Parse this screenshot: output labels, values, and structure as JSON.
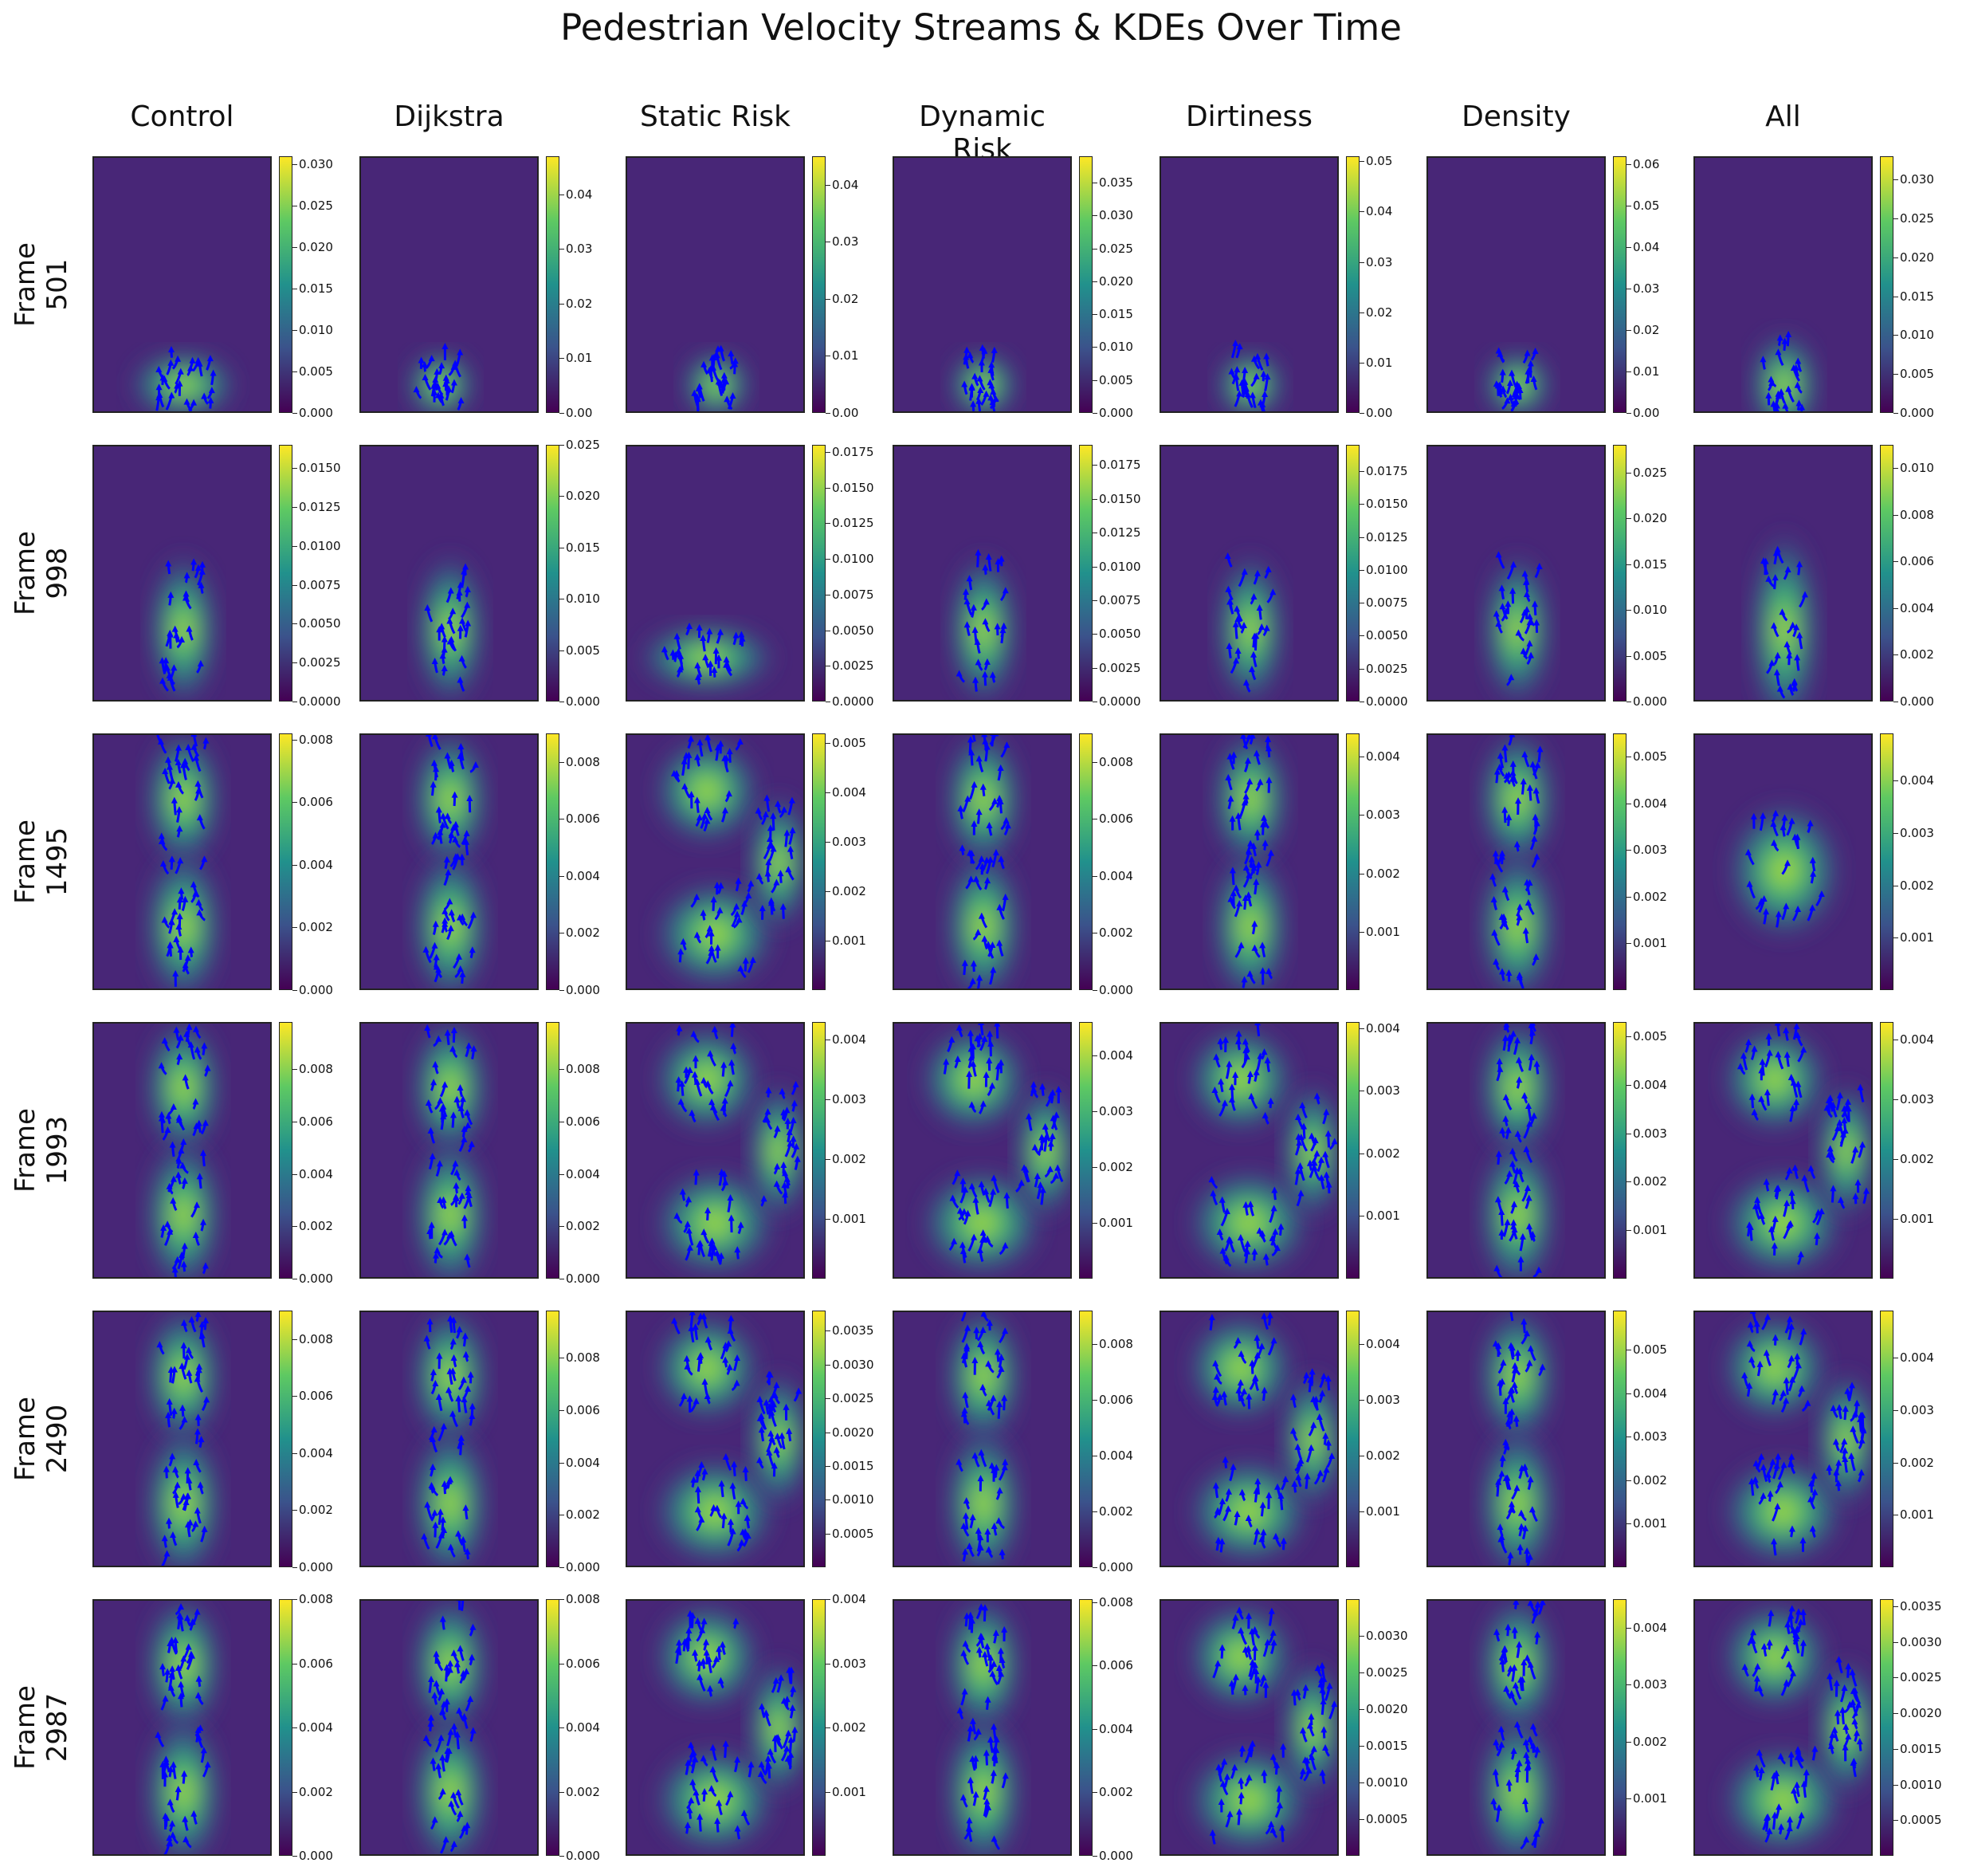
{
  "chart_data": {
    "type": "heatmap",
    "title": "Pedestrian Velocity Streams & KDEs Over Time",
    "columns": [
      "Control",
      "Dijkstra",
      "Static Risk",
      "Dynamic Risk",
      "Dirtiness",
      "Density",
      "All"
    ],
    "rows": [
      {
        "frame": "Frame\n501",
        "panels": [
          {
            "max": 0.031,
            "ticks": [
              "0.000",
              "0.005",
              "0.010",
              "0.015",
              "0.020",
              "0.025",
              "0.030"
            ],
            "pattern": "blob-bottom-wide"
          },
          {
            "max": 0.047,
            "ticks": [
              "0.00",
              "0.01",
              "0.02",
              "0.03",
              "0.04"
            ],
            "pattern": "blob-bottom-left"
          },
          {
            "max": 0.045,
            "ticks": [
              "0.00",
              "0.01",
              "0.02",
              "0.03",
              "0.04"
            ],
            "pattern": "blob-bottom"
          },
          {
            "max": 0.039,
            "ticks": [
              "0.000",
              "0.005",
              "0.010",
              "0.015",
              "0.020",
              "0.025",
              "0.030",
              "0.035"
            ],
            "pattern": "blob-bottom"
          },
          {
            "max": 0.051,
            "ticks": [
              "0.00",
              "0.01",
              "0.02",
              "0.03",
              "0.04",
              "0.05"
            ],
            "pattern": "blob-bottom"
          },
          {
            "max": 0.062,
            "ticks": [
              "0.00",
              "0.01",
              "0.02",
              "0.03",
              "0.04",
              "0.05",
              "0.06"
            ],
            "pattern": "blob-bottom-small"
          },
          {
            "max": 0.033,
            "ticks": [
              "0.000",
              "0.005",
              "0.010",
              "0.015",
              "0.020",
              "0.025",
              "0.030"
            ],
            "pattern": "blob-bottom-tall"
          }
        ]
      },
      {
        "frame": "Frame\n998",
        "panels": [
          {
            "max": 0.0165,
            "ticks": [
              "0.0000",
              "0.0025",
              "0.0050",
              "0.0075",
              "0.0100",
              "0.0125",
              "0.0150"
            ],
            "pattern": "column-lower"
          },
          {
            "max": 0.025,
            "ticks": [
              "0.000",
              "0.005",
              "0.010",
              "0.015",
              "0.020",
              "0.025"
            ],
            "pattern": "column-lower-short"
          },
          {
            "max": 0.018,
            "ticks": [
              "0.0000",
              "0.0025",
              "0.0050",
              "0.0075",
              "0.0100",
              "0.0125",
              "0.0150",
              "0.0175"
            ],
            "pattern": "horizontal-bottom"
          },
          {
            "max": 0.019,
            "ticks": [
              "0.0000",
              "0.0025",
              "0.0050",
              "0.0075",
              "0.0100",
              "0.0125",
              "0.0150",
              "0.0175"
            ],
            "pattern": "column-lower"
          },
          {
            "max": 0.0195,
            "ticks": [
              "0.0000",
              "0.0025",
              "0.0050",
              "0.0075",
              "0.0100",
              "0.0125",
              "0.0150",
              "0.0175"
            ],
            "pattern": "column-lower"
          },
          {
            "max": 0.028,
            "ticks": [
              "0.000",
              "0.005",
              "0.010",
              "0.015",
              "0.020",
              "0.025"
            ],
            "pattern": "column-lower"
          },
          {
            "max": 0.011,
            "ticks": [
              "0.000",
              "0.002",
              "0.004",
              "0.006",
              "0.008",
              "0.010"
            ],
            "pattern": "column-lower-tall"
          }
        ]
      },
      {
        "frame": "Frame\n1495",
        "panels": [
          {
            "max": 0.0082,
            "ticks": [
              "0.000",
              "0.002",
              "0.004",
              "0.006",
              "0.008"
            ],
            "pattern": "column-full"
          },
          {
            "max": 0.009,
            "ticks": [
              "0.000",
              "0.002",
              "0.004",
              "0.006",
              "0.008"
            ],
            "pattern": "column-full"
          },
          {
            "max": 0.0052,
            "ticks": [
              "0.001",
              "0.002",
              "0.003",
              "0.004",
              "0.005"
            ],
            "pattern": "loop"
          },
          {
            "max": 0.009,
            "ticks": [
              "0.000",
              "0.002",
              "0.004",
              "0.006",
              "0.008"
            ],
            "pattern": "column-full"
          },
          {
            "max": 0.0044,
            "ticks": [
              "0.001",
              "0.002",
              "0.003",
              "0.004"
            ],
            "pattern": "column-left-arm"
          },
          {
            "max": 0.0055,
            "ticks": [
              "0.001",
              "0.002",
              "0.003",
              "0.004",
              "0.005"
            ],
            "pattern": "column-scatter"
          },
          {
            "max": 0.0049,
            "ticks": [
              "0.001",
              "0.002",
              "0.003",
              "0.004"
            ],
            "pattern": "scatter-center"
          }
        ]
      },
      {
        "frame": "Frame\n1993",
        "panels": [
          {
            "max": 0.0098,
            "ticks": [
              "0.000",
              "0.002",
              "0.004",
              "0.006",
              "0.008"
            ],
            "pattern": "column-full"
          },
          {
            "max": 0.0098,
            "ticks": [
              "0.000",
              "0.002",
              "0.004",
              "0.006",
              "0.008"
            ],
            "pattern": "column-full"
          },
          {
            "max": 0.0043,
            "ticks": [
              "0.001",
              "0.002",
              "0.003",
              "0.004"
            ],
            "pattern": "loop"
          },
          {
            "max": 0.0046,
            "ticks": [
              "0.001",
              "0.002",
              "0.003",
              "0.004"
            ],
            "pattern": "loop"
          },
          {
            "max": 0.0041,
            "ticks": [
              "0.001",
              "0.002",
              "0.003",
              "0.004"
            ],
            "pattern": "loop"
          },
          {
            "max": 0.0053,
            "ticks": [
              "0.001",
              "0.002",
              "0.003",
              "0.004",
              "0.005"
            ],
            "pattern": "column-full"
          },
          {
            "max": 0.0043,
            "ticks": [
              "0.001",
              "0.002",
              "0.003",
              "0.004"
            ],
            "pattern": "loop"
          }
        ]
      },
      {
        "frame": "Frame\n2490",
        "panels": [
          {
            "max": 0.009,
            "ticks": [
              "0.000",
              "0.002",
              "0.004",
              "0.006",
              "0.008"
            ],
            "pattern": "column-full"
          },
          {
            "max": 0.0098,
            "ticks": [
              "0.000",
              "0.002",
              "0.004",
              "0.006",
              "0.008"
            ],
            "pattern": "column-full"
          },
          {
            "max": 0.0038,
            "ticks": [
              "0.0005",
              "0.0010",
              "0.0015",
              "0.0020",
              "0.0025",
              "0.0030",
              "0.0035"
            ],
            "pattern": "loop"
          },
          {
            "max": 0.0092,
            "ticks": [
              "0.000",
              "0.002",
              "0.004",
              "0.006",
              "0.008"
            ],
            "pattern": "column-full"
          },
          {
            "max": 0.0046,
            "ticks": [
              "0.001",
              "0.002",
              "0.003",
              "0.004"
            ],
            "pattern": "loop"
          },
          {
            "max": 0.0059,
            "ticks": [
              "0.001",
              "0.002",
              "0.003",
              "0.004",
              "0.005"
            ],
            "pattern": "column-full"
          },
          {
            "max": 0.0049,
            "ticks": [
              "0.001",
              "0.002",
              "0.003",
              "0.004"
            ],
            "pattern": "loop"
          }
        ]
      },
      {
        "frame": "Frame\n2987",
        "panels": [
          {
            "max": 0.008,
            "ticks": [
              "0.000",
              "0.002",
              "0.004",
              "0.006",
              "0.008"
            ],
            "pattern": "column-full"
          },
          {
            "max": 0.008,
            "ticks": [
              "0.000",
              "0.002",
              "0.004",
              "0.006",
              "0.008"
            ],
            "pattern": "column-full"
          },
          {
            "max": 0.004,
            "ticks": [
              "0.001",
              "0.002",
              "0.003",
              "0.004"
            ],
            "pattern": "loop"
          },
          {
            "max": 0.0081,
            "ticks": [
              "0.000",
              "0.002",
              "0.004",
              "0.006",
              "0.008"
            ],
            "pattern": "column-full"
          },
          {
            "max": 0.0035,
            "ticks": [
              "0.0005",
              "0.0010",
              "0.0015",
              "0.0020",
              "0.0025",
              "0.0030"
            ],
            "pattern": "loop"
          },
          {
            "max": 0.0045,
            "ticks": [
              "0.001",
              "0.002",
              "0.003",
              "0.004"
            ],
            "pattern": "column-full"
          },
          {
            "max": 0.0036,
            "ticks": [
              "0.0005",
              "0.0010",
              "0.0015",
              "0.0020",
              "0.0025",
              "0.0030",
              "0.0035"
            ],
            "pattern": "loop"
          }
        ]
      }
    ],
    "colormap": "viridis",
    "stream_color": "#0000ff"
  }
}
